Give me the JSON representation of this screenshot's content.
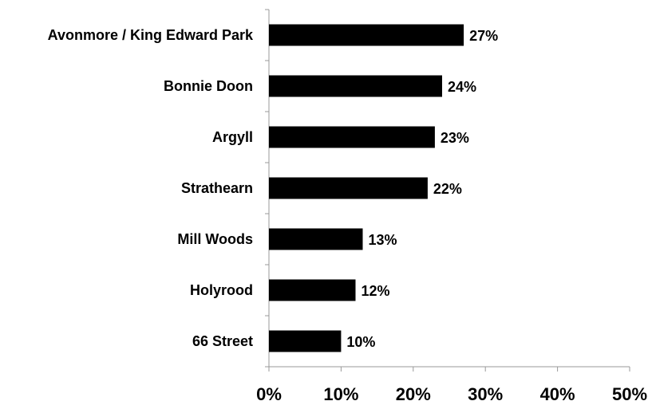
{
  "chart_data": {
    "type": "bar",
    "orientation": "horizontal",
    "title": "",
    "xlabel": "",
    "ylabel": "",
    "categories": [
      "Avonmore / King Edward Park",
      "Bonnie Doon",
      "Argyll",
      "Strathearn",
      "Mill Woods",
      "Holyrood",
      "66 Street"
    ],
    "values": [
      27,
      24,
      23,
      22,
      13,
      12,
      10
    ],
    "value_labels": [
      "27%",
      "24%",
      "23%",
      "22%",
      "13%",
      "12%",
      "10%"
    ],
    "xlim": [
      0,
      50
    ],
    "x_ticks": [
      0,
      10,
      20,
      30,
      40,
      50
    ],
    "x_tick_labels": [
      "0%",
      "10%",
      "20%",
      "30%",
      "40%",
      "50%"
    ],
    "grid": false,
    "legend": "none",
    "bar_color": "#000000"
  }
}
